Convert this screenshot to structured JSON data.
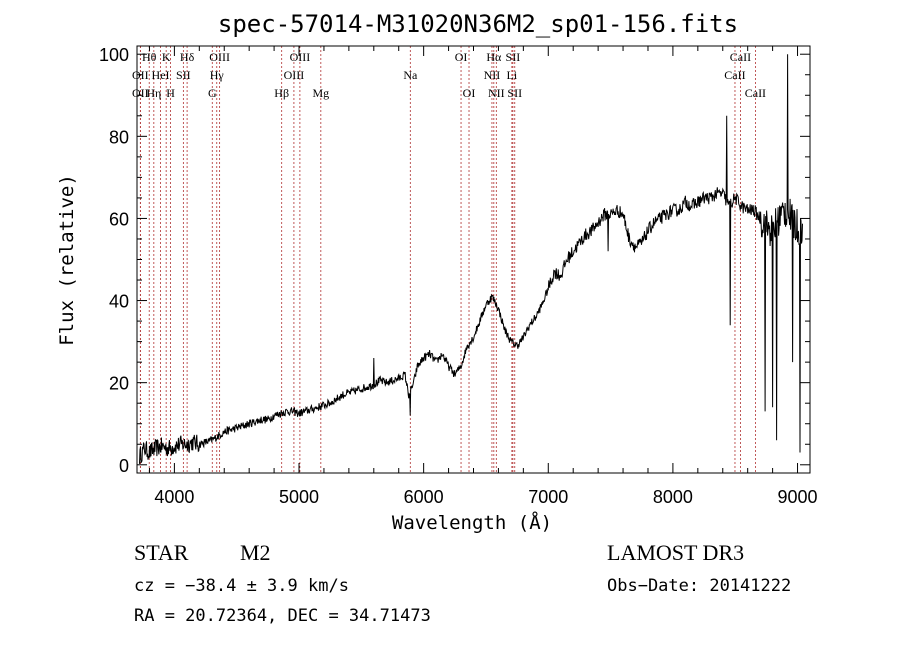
{
  "chart_data": {
    "type": "line",
    "title": "spec-57014-M31020N36M2_sp01-156.fits",
    "xlabel": "Wavelength (Å)",
    "ylabel": "Flux (relative)",
    "xlim": [
      3700,
      9100
    ],
    "ylim": [
      -2,
      102
    ],
    "x_ticks": [
      4000,
      5000,
      6000,
      7000,
      8000,
      9000
    ],
    "y_ticks": [
      0,
      20,
      40,
      60,
      80,
      100
    ],
    "grid": false,
    "line_color": "#000000",
    "marker_line_color": "#b03030",
    "anchor_points": [
      [
        3720,
        2
      ],
      [
        3760,
        4
      ],
      [
        3800,
        3
      ],
      [
        3850,
        4
      ],
      [
        3900,
        4.5
      ],
      [
        3950,
        4
      ],
      [
        4000,
        4.5
      ],
      [
        4050,
        5
      ],
      [
        4100,
        5
      ],
      [
        4150,
        5.5
      ],
      [
        4200,
        5
      ],
      [
        4250,
        5.5
      ],
      [
        4300,
        6
      ],
      [
        4350,
        7
      ],
      [
        4400,
        8
      ],
      [
        4450,
        8.5
      ],
      [
        4500,
        9
      ],
      [
        4550,
        9.5
      ],
      [
        4600,
        10
      ],
      [
        4650,
        10.5
      ],
      [
        4700,
        11
      ],
      [
        4750,
        11
      ],
      [
        4800,
        12
      ],
      [
        4850,
        12.5
      ],
      [
        4900,
        13
      ],
      [
        4950,
        13
      ],
      [
        5000,
        12.5
      ],
      [
        5050,
        13
      ],
      [
        5100,
        13.5
      ],
      [
        5150,
        14
      ],
      [
        5200,
        14.5
      ],
      [
        5250,
        15
      ],
      [
        5300,
        16
      ],
      [
        5350,
        17
      ],
      [
        5400,
        17.5
      ],
      [
        5450,
        18
      ],
      [
        5500,
        18.5
      ],
      [
        5550,
        19
      ],
      [
        5600,
        19.5
      ],
      [
        5650,
        20.5
      ],
      [
        5700,
        20
      ],
      [
        5750,
        20.5
      ],
      [
        5800,
        21
      ],
      [
        5850,
        22
      ],
      [
        5880,
        17
      ],
      [
        5920,
        20
      ],
      [
        5950,
        24
      ],
      [
        6000,
        26
      ],
      [
        6050,
        27
      ],
      [
        6100,
        25
      ],
      [
        6150,
        27
      ],
      [
        6200,
        24
      ],
      [
        6250,
        22
      ],
      [
        6300,
        24
      ],
      [
        6350,
        29
      ],
      [
        6400,
        31
      ],
      [
        6450,
        35
      ],
      [
        6500,
        39
      ],
      [
        6550,
        41
      ],
      [
        6600,
        38
      ],
      [
        6650,
        33
      ],
      [
        6700,
        30
      ],
      [
        6750,
        29
      ],
      [
        6800,
        31
      ],
      [
        6850,
        34
      ],
      [
        6900,
        36
      ],
      [
        6950,
        39
      ],
      [
        7000,
        43
      ],
      [
        7050,
        47
      ],
      [
        7100,
        46
      ],
      [
        7150,
        50
      ],
      [
        7200,
        52
      ],
      [
        7250,
        54
      ],
      [
        7300,
        56
      ],
      [
        7350,
        57
      ],
      [
        7400,
        59
      ],
      [
        7450,
        61
      ],
      [
        7500,
        61
      ],
      [
        7550,
        62
      ],
      [
        7600,
        61
      ],
      [
        7650,
        55
      ],
      [
        7700,
        53
      ],
      [
        7750,
        54
      ],
      [
        7800,
        57
      ],
      [
        7850,
        59
      ],
      [
        7900,
        60
      ],
      [
        7950,
        61
      ],
      [
        8000,
        62
      ],
      [
        8050,
        62
      ],
      [
        8100,
        64
      ],
      [
        8150,
        63
      ],
      [
        8200,
        64
      ],
      [
        8250,
        65
      ],
      [
        8300,
        65
      ],
      [
        8350,
        66
      ],
      [
        8400,
        66
      ],
      [
        8450,
        63
      ],
      [
        8500,
        65
      ],
      [
        8550,
        63
      ],
      [
        8600,
        62
      ],
      [
        8650,
        62
      ],
      [
        8700,
        60
      ],
      [
        8750,
        58
      ],
      [
        8800,
        57
      ],
      [
        8850,
        60
      ],
      [
        8900,
        62
      ],
      [
        8950,
        60
      ],
      [
        9000,
        58
      ],
      [
        9050,
        58
      ]
    ],
    "features": [
      {
        "x": 8460,
        "y": 34
      },
      {
        "x": 8430,
        "y": 85
      },
      {
        "x": 8740,
        "y": 13
      },
      {
        "x": 8800,
        "y": 14
      },
      {
        "x": 8830,
        "y": 6
      },
      {
        "x": 8920,
        "y": 100
      },
      {
        "x": 8960,
        "y": 25
      },
      {
        "x": 9020,
        "y": 3
      },
      {
        "x": 5600,
        "y": 26
      },
      {
        "x": 5890,
        "y": 12
      },
      {
        "x": 7480,
        "y": 52
      }
    ],
    "lines": [
      {
        "label": "Hθ",
        "x": 3798,
        "row": 0
      },
      {
        "label": "OII",
        "x": 3727,
        "row": 1
      },
      {
        "label": "OII",
        "x": 3727,
        "row": 2
      },
      {
        "label": "K",
        "x": 3934,
        "row": 0
      },
      {
        "label": "HeI",
        "x": 3889,
        "row": 1
      },
      {
        "label": "Hη",
        "x": 3835,
        "row": 2
      },
      {
        "label": "SII",
        "x": 4072,
        "row": 1
      },
      {
        "label": "H",
        "x": 3969,
        "row": 2
      },
      {
        "label": "Hδ",
        "x": 4102,
        "row": 0
      },
      {
        "label": "OIII",
        "x": 4363,
        "row": 0
      },
      {
        "label": "Hγ",
        "x": 4340,
        "row": 1
      },
      {
        "label": "G",
        "x": 4304,
        "row": 2
      },
      {
        "label": "OIII",
        "x": 5007,
        "row": 0
      },
      {
        "label": "OIII",
        "x": 4959,
        "row": 1
      },
      {
        "label": "Hβ",
        "x": 4861,
        "row": 2
      },
      {
        "label": "Mg",
        "x": 5175,
        "row": 2
      },
      {
        "label": "Na",
        "x": 5893,
        "row": 1
      },
      {
        "label": "OI",
        "x": 6300,
        "row": 0
      },
      {
        "label": "OI",
        "x": 6364,
        "row": 2
      },
      {
        "label": "Hα",
        "x": 6563,
        "row": 0
      },
      {
        "label": "SII",
        "x": 6716,
        "row": 0
      },
      {
        "label": "NII",
        "x": 6548,
        "row": 1
      },
      {
        "label": "Li",
        "x": 6708,
        "row": 1
      },
      {
        "label": "NII",
        "x": 6583,
        "row": 2
      },
      {
        "label": "SII",
        "x": 6731,
        "row": 2
      },
      {
        "label": "CaII",
        "x": 8542,
        "row": 0
      },
      {
        "label": "CaII",
        "x": 8498,
        "row": 1
      },
      {
        "label": "CaII",
        "x": 8662,
        "row": 2
      }
    ]
  },
  "info": {
    "object_class": "STAR",
    "subclass": "M2",
    "survey": "LAMOST DR3",
    "cz": "cz = −38.4 ± 3.9 km/s",
    "obs_date": "Obs−Date: 20141222",
    "coords": "RA =  20.72364, DEC =  34.71473"
  }
}
